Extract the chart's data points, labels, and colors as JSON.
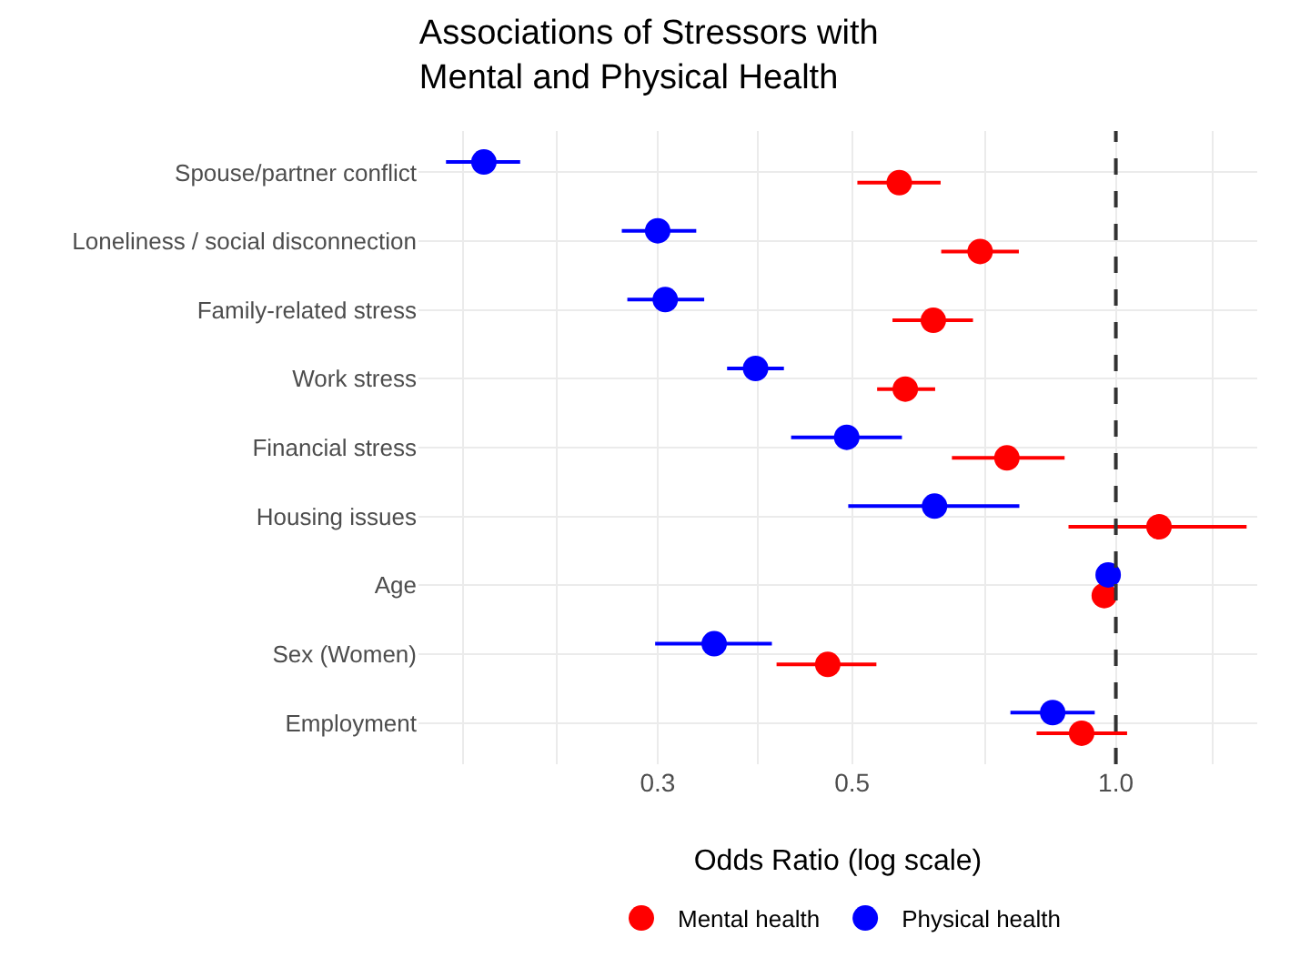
{
  "chart_data": {
    "type": "scatter",
    "title": "Associations of Stressors with\nMental and Physical Health",
    "xlabel": "Odds Ratio (log scale)",
    "categories": [
      "Spouse/partner conflict",
      "Loneliness / social disconnection",
      "Family-related stress",
      "Work stress",
      "Financial stress",
      "Housing issues",
      "Age",
      "Sex (Women)",
      "Employment"
    ],
    "orientation": "horizontal",
    "log": "x",
    "xlim": [
      0.16,
      1.45
    ],
    "xticks": [
      {
        "value": 0.18,
        "label": null
      },
      {
        "value": 0.23,
        "label": null
      },
      0.3,
      {
        "value": 0.39,
        "label": null
      },
      0.5,
      {
        "value": 0.71,
        "label": null
      },
      {
        "value": 1.0,
        "label": "1.0"
      },
      {
        "value": 1.29,
        "label": null
      }
    ],
    "series": [
      {
        "name": "Mental health",
        "color": "#ff0000",
        "values": [
          0.566,
          0.7,
          0.619,
          0.575,
          0.751,
          1.12,
          0.97,
          0.469,
          0.914
        ],
        "errors": [
          [
            0.507,
            0.631
          ],
          [
            0.632,
            0.775
          ],
          [
            0.556,
            0.687
          ],
          [
            0.534,
            0.622
          ],
          [
            0.65,
            0.874
          ],
          [
            0.883,
            1.41
          ],
          null,
          [
            0.41,
            0.533
          ],
          [
            0.812,
            1.03
          ]
        ]
      },
      {
        "name": "Physical health",
        "color": "#0000ff",
        "values": [
          0.19,
          0.3,
          0.306,
          0.388,
          0.493,
          0.621,
          0.98,
          0.348,
          0.847
        ],
        "errors": [
          [
            0.172,
            0.209
          ],
          [
            0.273,
            0.332
          ],
          [
            0.277,
            0.339
          ],
          [
            0.36,
            0.418
          ],
          [
            0.426,
            0.57
          ],
          [
            0.495,
            0.776
          ],
          null,
          [
            0.298,
            0.405
          ],
          [
            0.758,
            0.946
          ]
        ]
      }
    ],
    "ref_lines": [
      {
        "axis": "x",
        "value": 1,
        "color": "#333333",
        "line_style": "dashed"
      }
    ],
    "grid": true,
    "legend": "bottom",
    "marker": "circle"
  }
}
